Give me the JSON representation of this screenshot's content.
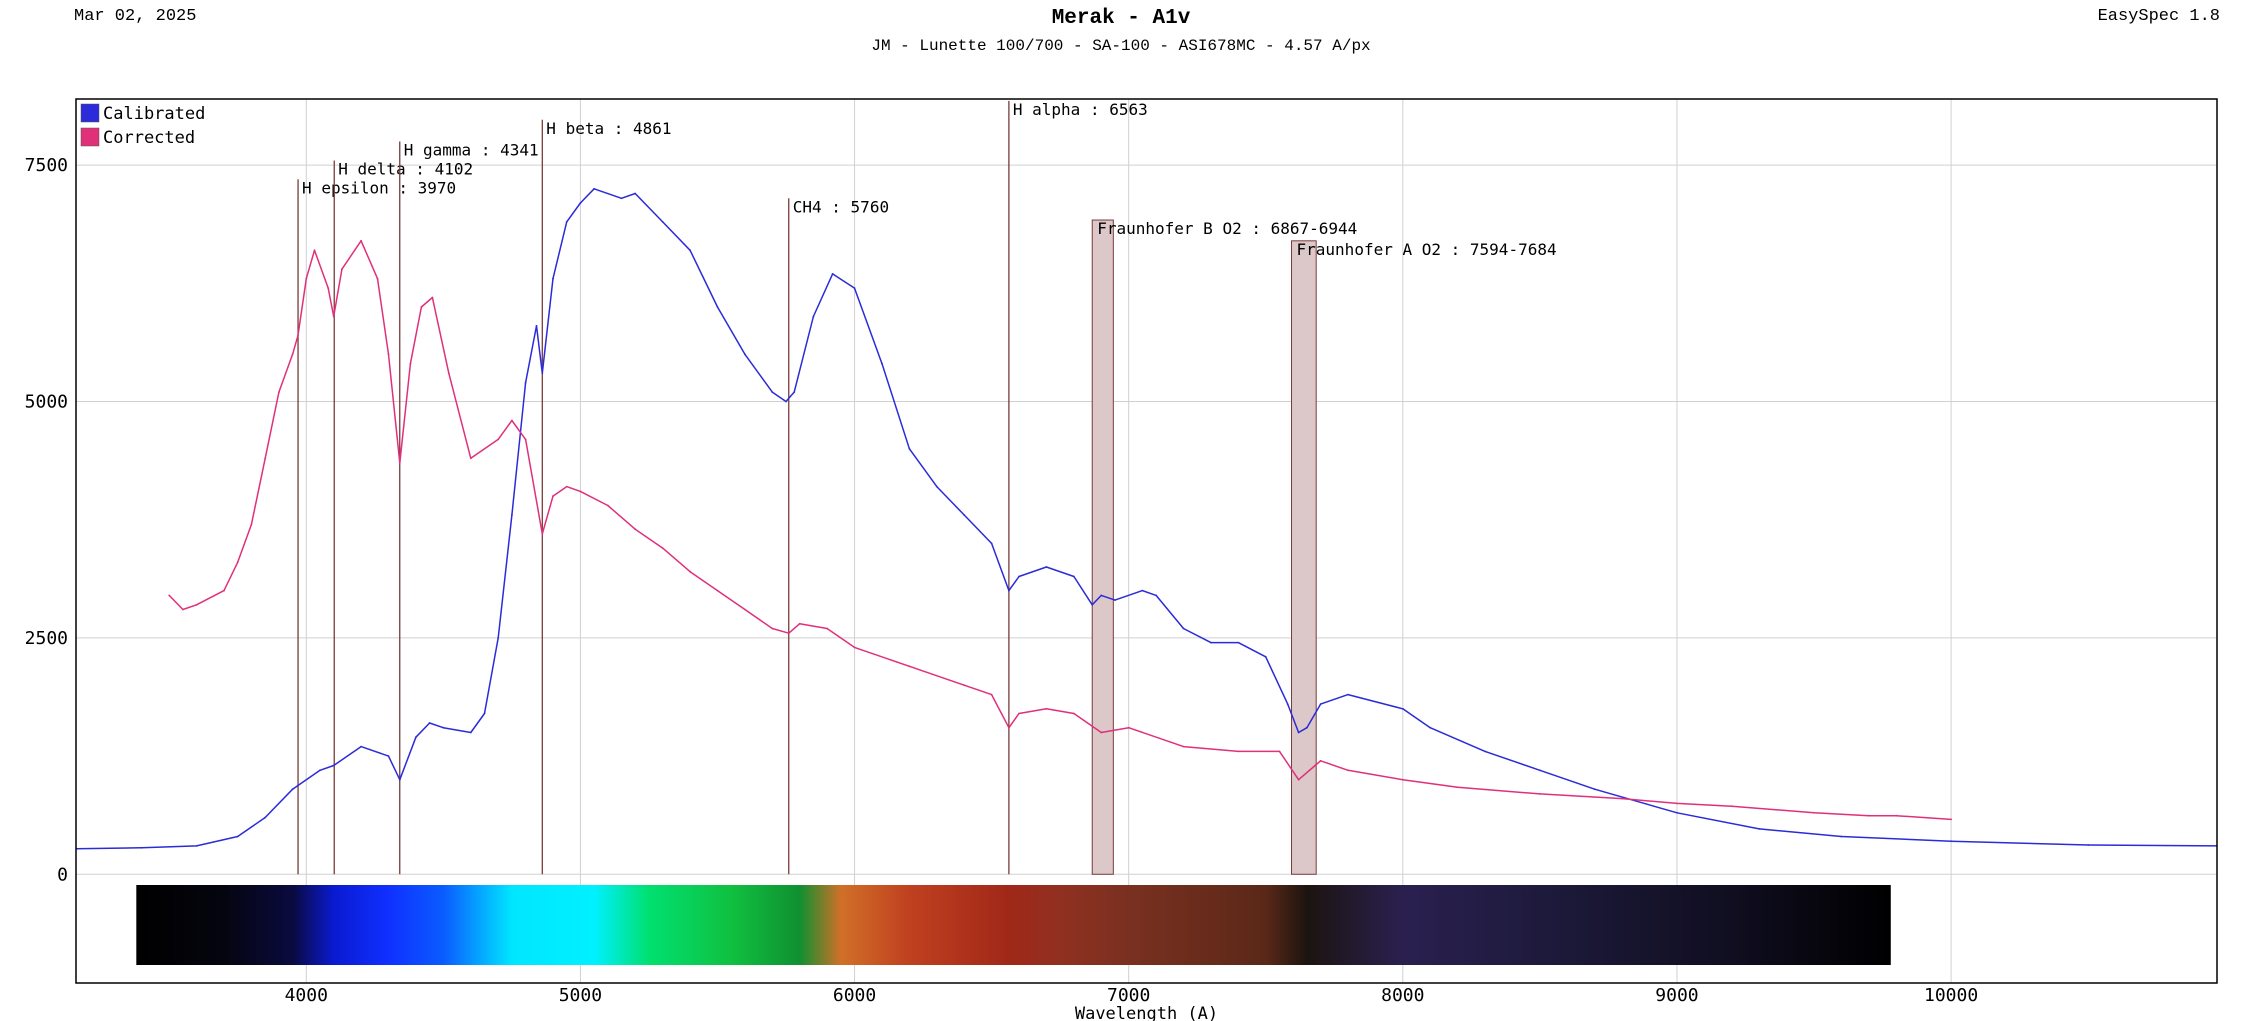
{
  "header": {
    "date": "Mar 02, 2025",
    "title": "Merak - A1v",
    "subtitle": "JM - Lunette 100/700 - SA-100 - ASI678MC - 4.57 A/px",
    "software": "EasySpec 1.8"
  },
  "colors": {
    "calibrated": "#2b2bd9",
    "corrected": "#e0307a",
    "marker_line": "#7a3a3a",
    "band_fill": "#dcc8c8",
    "grid": "#d0d0d0"
  },
  "chart_data": {
    "type": "line",
    "title": "Merak - A1v",
    "xlabel": "Wavelength (A)",
    "ylabel": "",
    "xlim": [
      3160,
      10970
    ],
    "ylim": [
      -1150,
      8200
    ],
    "x_ticks": [
      4000,
      5000,
      6000,
      7000,
      8000,
      9000,
      10000
    ],
    "y_ticks": [
      0,
      2500,
      5000,
      7500
    ],
    "grid": true,
    "legend_position": "top-left",
    "series": [
      {
        "name": "Calibrated",
        "color": "#2b2bd9",
        "points": [
          [
            3160,
            270
          ],
          [
            3400,
            280
          ],
          [
            3600,
            300
          ],
          [
            3750,
            400
          ],
          [
            3850,
            600
          ],
          [
            3950,
            900
          ],
          [
            4050,
            1100
          ],
          [
            4100,
            1150
          ],
          [
            4200,
            1350
          ],
          [
            4300,
            1250
          ],
          [
            4341,
            1000
          ],
          [
            4400,
            1450
          ],
          [
            4450,
            1600
          ],
          [
            4500,
            1550
          ],
          [
            4600,
            1500
          ],
          [
            4650,
            1700
          ],
          [
            4700,
            2500
          ],
          [
            4750,
            3800
          ],
          [
            4800,
            5200
          ],
          [
            4840,
            5800
          ],
          [
            4861,
            5300
          ],
          [
            4900,
            6300
          ],
          [
            4950,
            6900
          ],
          [
            5000,
            7100
          ],
          [
            5050,
            7250
          ],
          [
            5150,
            7150
          ],
          [
            5200,
            7200
          ],
          [
            5300,
            6900
          ],
          [
            5400,
            6600
          ],
          [
            5500,
            6000
          ],
          [
            5600,
            5500
          ],
          [
            5700,
            5100
          ],
          [
            5750,
            5000
          ],
          [
            5780,
            5100
          ],
          [
            5850,
            5900
          ],
          [
            5920,
            6350
          ],
          [
            6000,
            6200
          ],
          [
            6100,
            5400
          ],
          [
            6200,
            4500
          ],
          [
            6300,
            4100
          ],
          [
            6400,
            3800
          ],
          [
            6500,
            3500
          ],
          [
            6563,
            3000
          ],
          [
            6600,
            3150
          ],
          [
            6700,
            3250
          ],
          [
            6800,
            3150
          ],
          [
            6867,
            2850
          ],
          [
            6900,
            2950
          ],
          [
            6950,
            2900
          ],
          [
            7050,
            3000
          ],
          [
            7100,
            2950
          ],
          [
            7200,
            2600
          ],
          [
            7300,
            2450
          ],
          [
            7400,
            2450
          ],
          [
            7500,
            2300
          ],
          [
            7580,
            1800
          ],
          [
            7620,
            1500
          ],
          [
            7650,
            1550
          ],
          [
            7700,
            1800
          ],
          [
            7800,
            1900
          ],
          [
            8000,
            1750
          ],
          [
            8100,
            1550
          ],
          [
            8300,
            1300
          ],
          [
            8500,
            1100
          ],
          [
            8700,
            900
          ],
          [
            9000,
            650
          ],
          [
            9300,
            480
          ],
          [
            9600,
            400
          ],
          [
            10000,
            350
          ],
          [
            10500,
            310
          ],
          [
            10970,
            300
          ]
        ]
      },
      {
        "name": "Corrected",
        "color": "#e0307a",
        "points": [
          [
            3500,
            2950
          ],
          [
            3550,
            2800
          ],
          [
            3600,
            2850
          ],
          [
            3700,
            3000
          ],
          [
            3750,
            3300
          ],
          [
            3800,
            3700
          ],
          [
            3850,
            4400
          ],
          [
            3900,
            5100
          ],
          [
            3950,
            5500
          ],
          [
            3970,
            5700
          ],
          [
            4000,
            6300
          ],
          [
            4030,
            6600
          ],
          [
            4080,
            6200
          ],
          [
            4100,
            5900
          ],
          [
            4130,
            6400
          ],
          [
            4200,
            6700
          ],
          [
            4260,
            6300
          ],
          [
            4300,
            5500
          ],
          [
            4341,
            4350
          ],
          [
            4380,
            5400
          ],
          [
            4420,
            6000
          ],
          [
            4460,
            6100
          ],
          [
            4520,
            5300
          ],
          [
            4600,
            4400
          ],
          [
            4700,
            4600
          ],
          [
            4750,
            4800
          ],
          [
            4800,
            4600
          ],
          [
            4861,
            3600
          ],
          [
            4900,
            4000
          ],
          [
            4950,
            4100
          ],
          [
            5000,
            4050
          ],
          [
            5100,
            3900
          ],
          [
            5200,
            3650
          ],
          [
            5300,
            3450
          ],
          [
            5400,
            3200
          ],
          [
            5500,
            3000
          ],
          [
            5600,
            2800
          ],
          [
            5700,
            2600
          ],
          [
            5760,
            2550
          ],
          [
            5800,
            2650
          ],
          [
            5900,
            2600
          ],
          [
            6000,
            2400
          ],
          [
            6200,
            2200
          ],
          [
            6400,
            2000
          ],
          [
            6500,
            1900
          ],
          [
            6563,
            1550
          ],
          [
            6600,
            1700
          ],
          [
            6700,
            1750
          ],
          [
            6800,
            1700
          ],
          [
            6900,
            1500
          ],
          [
            7000,
            1550
          ],
          [
            7200,
            1350
          ],
          [
            7400,
            1300
          ],
          [
            7550,
            1300
          ],
          [
            7620,
            1000
          ],
          [
            7680,
            1150
          ],
          [
            7700,
            1200
          ],
          [
            7800,
            1100
          ],
          [
            8000,
            1000
          ],
          [
            8200,
            920
          ],
          [
            8500,
            850
          ],
          [
            8800,
            800
          ],
          [
            9000,
            750
          ],
          [
            9200,
            720
          ],
          [
            9500,
            650
          ],
          [
            9700,
            620
          ],
          [
            9800,
            620
          ],
          [
            10000,
            580
          ]
        ]
      }
    ],
    "markers": [
      {
        "label": "H epsilon : 3970",
        "x": 3970,
        "top": 7350
      },
      {
        "label": "H delta : 4102",
        "x": 4102,
        "top": 7550
      },
      {
        "label": "H gamma : 4341",
        "x": 4341,
        "top": 7750
      },
      {
        "label": "H beta : 4861",
        "x": 4861,
        "top": 7980
      },
      {
        "label": "CH4 : 5760",
        "x": 5760,
        "top": 7150
      },
      {
        "label": "H alpha : 6563",
        "x": 6563,
        "top": 8180
      }
    ],
    "bands": [
      {
        "label": "Fraunhofer B O2 : 6867-6944",
        "x_start": 6867,
        "x_end": 6944,
        "top": 6920
      },
      {
        "label": "Fraunhofer A O2 : 7594-7684",
        "x_start": 7594,
        "x_end": 7684,
        "top": 6700
      }
    ],
    "spectrum_strip": {
      "x_start": 3380,
      "x_end": 9780,
      "stops": [
        {
          "x": 3380,
          "color": "#000000"
        },
        {
          "x": 3700,
          "color": "#05050f"
        },
        {
          "x": 3950,
          "color": "#0a0a40"
        },
        {
          "x": 4100,
          "color": "#0a1ad0"
        },
        {
          "x": 4300,
          "color": "#1030ff"
        },
        {
          "x": 4500,
          "color": "#0a5cff"
        },
        {
          "x": 4750,
          "color": "#00e6ff"
        },
        {
          "x": 5050,
          "color": "#00f0ff"
        },
        {
          "x": 5250,
          "color": "#00e070"
        },
        {
          "x": 5550,
          "color": "#10c040"
        },
        {
          "x": 5800,
          "color": "#109030"
        },
        {
          "x": 5950,
          "color": "#d07028"
        },
        {
          "x": 6200,
          "color": "#c04020"
        },
        {
          "x": 6563,
          "color": "#a02818"
        },
        {
          "x": 6750,
          "color": "#903020"
        },
        {
          "x": 7000,
          "color": "#7a3020"
        },
        {
          "x": 7500,
          "color": "#5a2818"
        },
        {
          "x": 7650,
          "color": "#1c1410"
        },
        {
          "x": 8000,
          "color": "#2a2050"
        },
        {
          "x": 8500,
          "color": "#1e1a3c"
        },
        {
          "x": 9200,
          "color": "#100e20"
        },
        {
          "x": 9780,
          "color": "#000000"
        }
      ]
    }
  }
}
